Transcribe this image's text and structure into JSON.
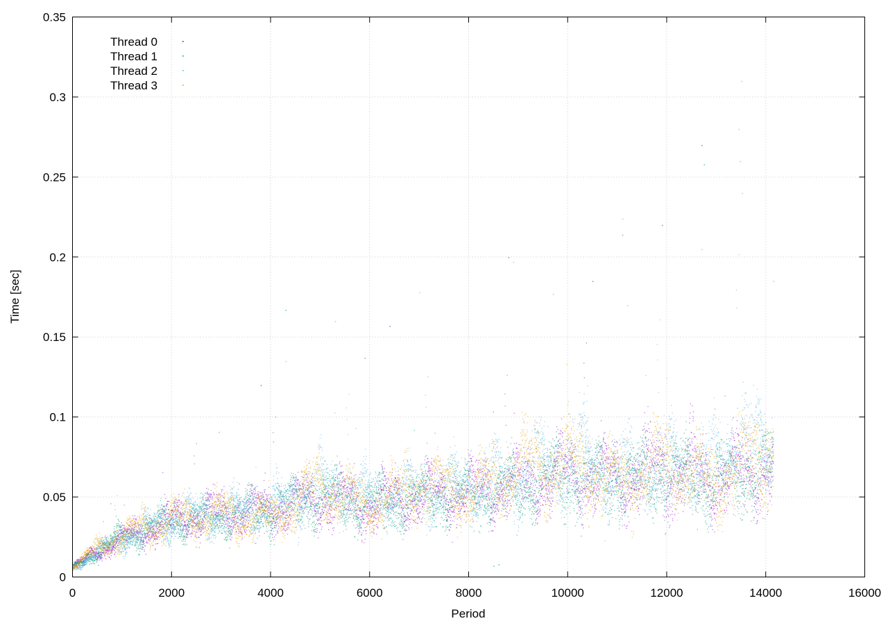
{
  "chart_data": {
    "type": "scatter",
    "title": "",
    "xlabel": "Period",
    "ylabel": "Time [sec]",
    "xlim": [
      0,
      16000
    ],
    "ylim": [
      0,
      0.35
    ],
    "xticks": [
      0,
      2000,
      4000,
      6000,
      8000,
      10000,
      12000,
      14000,
      16000
    ],
    "yticks": [
      0,
      0.05,
      0.1,
      0.15,
      0.2,
      0.25,
      0.3,
      0.35
    ],
    "xtick_labels": [
      "0",
      "2000",
      "4000",
      "6000",
      "8000",
      "10000",
      "12000",
      "14000",
      "16000"
    ],
    "ytick_labels": [
      "0",
      "0.05",
      "0.1",
      "0.15",
      "0.2",
      "0.25",
      "0.3",
      "0.35"
    ],
    "grid": true,
    "legend_position": "top-left",
    "point_count_per_series": 14150,
    "series": [
      {
        "name": "Thread 0",
        "color": "#9400d3",
        "trend": [
          [
            0,
            0.006
          ],
          [
            500,
            0.016
          ],
          [
            1000,
            0.024
          ],
          [
            2000,
            0.036
          ],
          [
            3000,
            0.04
          ],
          [
            4000,
            0.043
          ],
          [
            5000,
            0.05
          ],
          [
            6000,
            0.045
          ],
          [
            7000,
            0.052
          ],
          [
            8000,
            0.054
          ],
          [
            9000,
            0.058
          ],
          [
            10000,
            0.065
          ],
          [
            11000,
            0.062
          ],
          [
            12000,
            0.068
          ],
          [
            13000,
            0.062
          ],
          [
            14000,
            0.07
          ],
          [
            14150,
            0.07
          ]
        ],
        "outliers": [
          [
            3800,
            0.12
          ],
          [
            6400,
            0.157
          ],
          [
            8800,
            0.2
          ],
          [
            10500,
            0.185
          ],
          [
            11900,
            0.22
          ],
          [
            12700,
            0.27
          ]
        ]
      },
      {
        "name": "Thread 1",
        "color": "#009e73",
        "trend": [
          [
            0,
            0.006
          ],
          [
            500,
            0.017
          ],
          [
            1000,
            0.025
          ],
          [
            2000,
            0.035
          ],
          [
            3000,
            0.038
          ],
          [
            4000,
            0.042
          ],
          [
            5000,
            0.051
          ],
          [
            6000,
            0.047
          ],
          [
            7000,
            0.05
          ],
          [
            8000,
            0.052
          ],
          [
            9000,
            0.056
          ],
          [
            10000,
            0.063
          ],
          [
            11000,
            0.06
          ],
          [
            12000,
            0.066
          ],
          [
            13000,
            0.06
          ],
          [
            14000,
            0.068
          ],
          [
            14150,
            0.068
          ]
        ],
        "outliers": [
          [
            4300,
            0.167
          ],
          [
            5900,
            0.137
          ],
          [
            8500,
            0.007
          ],
          [
            8600,
            0.008
          ],
          [
            11100,
            0.214
          ],
          [
            12750,
            0.258
          ]
        ]
      },
      {
        "name": "Thread 2",
        "color": "#56b4e9",
        "trend": [
          [
            0,
            0.006
          ],
          [
            500,
            0.016
          ],
          [
            1000,
            0.024
          ],
          [
            2000,
            0.036
          ],
          [
            3000,
            0.039
          ],
          [
            4000,
            0.044
          ],
          [
            5000,
            0.058
          ],
          [
            6000,
            0.05
          ],
          [
            7000,
            0.054
          ],
          [
            8000,
            0.058
          ],
          [
            9000,
            0.062
          ],
          [
            10000,
            0.078
          ],
          [
            11000,
            0.066
          ],
          [
            12000,
            0.07
          ],
          [
            13000,
            0.07
          ],
          [
            13500,
            0.09
          ],
          [
            14000,
            0.075
          ],
          [
            14150,
            0.075
          ]
        ],
        "outliers": [
          [
            5300,
            0.16
          ],
          [
            9700,
            0.177
          ],
          [
            11100,
            0.224
          ],
          [
            13500,
            0.31
          ],
          [
            13450,
            0.28
          ],
          [
            13480,
            0.26
          ],
          [
            13520,
            0.24
          ]
        ]
      },
      {
        "name": "Thread 3",
        "color": "#e69f00",
        "trend": [
          [
            0,
            0.007
          ],
          [
            500,
            0.018
          ],
          [
            1000,
            0.026
          ],
          [
            2000,
            0.037
          ],
          [
            3000,
            0.04
          ],
          [
            4000,
            0.036
          ],
          [
            5000,
            0.058
          ],
          [
            6000,
            0.044
          ],
          [
            7000,
            0.058
          ],
          [
            8000,
            0.052
          ],
          [
            9000,
            0.07
          ],
          [
            10000,
            0.072
          ],
          [
            11000,
            0.06
          ],
          [
            12000,
            0.072
          ],
          [
            13000,
            0.058
          ],
          [
            14000,
            0.08
          ],
          [
            14150,
            0.08
          ]
        ],
        "outliers": [
          [
            4300,
            0.135
          ],
          [
            7000,
            0.178
          ],
          [
            8900,
            0.197
          ],
          [
            11200,
            0.17
          ],
          [
            12700,
            0.205
          ],
          [
            14150,
            0.185
          ]
        ]
      }
    ]
  }
}
